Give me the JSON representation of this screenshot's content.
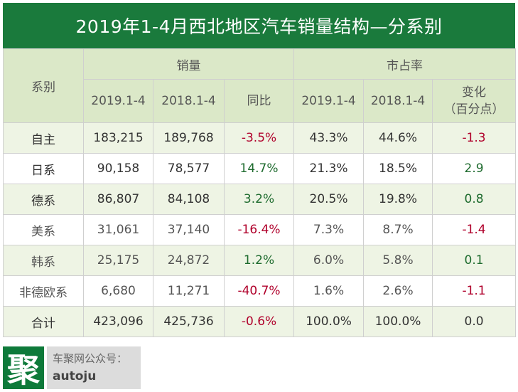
{
  "title": "2019年1-4月西北地区汽车销量结构—分系别",
  "header": {
    "series_col": "系别",
    "group_sales": "销量",
    "group_share": "市占率",
    "sales_2019": "2019.1-4",
    "sales_2018": "2018.1-4",
    "yoy": "同比",
    "share_2019": "2019.1-4",
    "share_2018": "2018.1-4",
    "change_line1": "变化",
    "change_line2": "（百分点）"
  },
  "rows": [
    {
      "name": "自主",
      "sales_2019": "183,215",
      "sales_2018": "189,768",
      "yoy": "-3.5%",
      "share_2019": "43.3%",
      "share_2018": "44.6%",
      "change": "-1.3"
    },
    {
      "name": "日系",
      "sales_2019": "90,158",
      "sales_2018": "78,577",
      "yoy": "14.7%",
      "share_2019": "21.3%",
      "share_2018": "18.5%",
      "change": "2.9"
    },
    {
      "name": "德系",
      "sales_2019": "86,807",
      "sales_2018": "84,108",
      "yoy": "3.2%",
      "share_2019": "20.5%",
      "share_2018": "19.8%",
      "change": "0.8"
    },
    {
      "name": "美系",
      "sales_2019": "31,061",
      "sales_2018": "37,140",
      "yoy": "-16.4%",
      "share_2019": "7.3%",
      "share_2018": "8.7%",
      "change": "-1.4"
    },
    {
      "name": "韩系",
      "sales_2019": "25,175",
      "sales_2018": "24,872",
      "yoy": "1.2%",
      "share_2019": "6.0%",
      "share_2018": "5.8%",
      "change": "0.1"
    },
    {
      "name": "非德欧系",
      "sales_2019": "6,680",
      "sales_2018": "11,271",
      "yoy": "-40.7%",
      "share_2019": "1.6%",
      "share_2018": "2.6%",
      "change": "-1.1"
    },
    {
      "name": "合计",
      "sales_2019": "423,096",
      "sales_2018": "425,736",
      "yoy": "-0.6%",
      "share_2019": "100.0%",
      "share_2018": "100.0%",
      "change": "0.0"
    }
  ],
  "footer": {
    "logo_char": "聚",
    "label": "车聚网公众号：",
    "account": "autoju"
  },
  "colors": {
    "title_bg": "#1a7a3c",
    "header_bg": "#dbe8c8",
    "row_alt_bg": "#eef4e4",
    "negative": "#b0002b",
    "positive": "#1e6b2e"
  }
}
